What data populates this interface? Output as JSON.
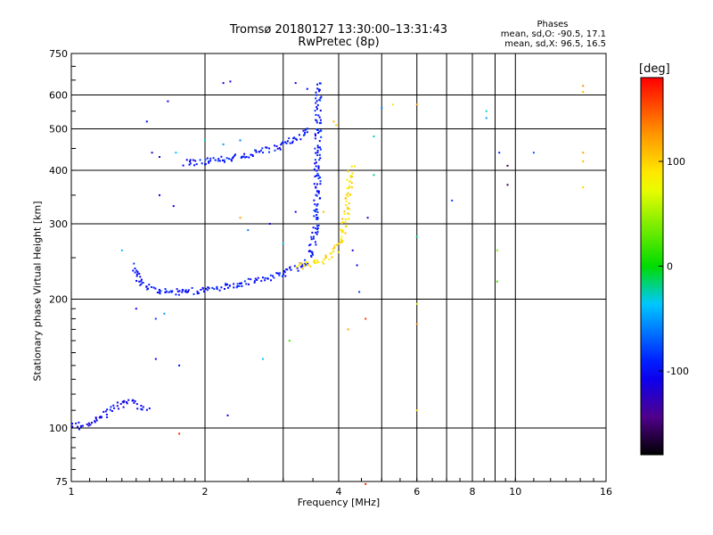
{
  "title": {
    "line1": "Tromsø 20180127 13:30:00–13:31:43",
    "line2": "RwPretec (8p)"
  },
  "phases": {
    "heading": "Phases",
    "o_line": "mean, sd,O: -90.5, 17.1",
    "x_line": "mean, sd,X:  96.5, 16.5"
  },
  "colorbar": {
    "unit": "[deg]",
    "range": [
      -180,
      180
    ],
    "ticks": [
      100,
      0,
      -100
    ],
    "tick_labels": [
      "100",
      "0",
      "-100"
    ]
  },
  "chart_data": {
    "type": "scatter",
    "title": "Tromsø 20180127 13:30:00–13:31:43",
    "subtitle": "RwPretec (8p)",
    "xlabel": "Frequency [MHz]",
    "ylabel": "Stationary phase Virtual Height [km]",
    "x_scale": "log",
    "y_scale": "log",
    "xlim": [
      1,
      16
    ],
    "ylim": [
      75,
      750
    ],
    "x_ticks": [
      1,
      2,
      4,
      6,
      8,
      10,
      16
    ],
    "x_tick_labels": [
      "1",
      "2",
      "4",
      "6",
      "8",
      "10",
      "16"
    ],
    "x_minor_ticks": [
      3,
      5,
      7,
      9
    ],
    "y_ticks": [
      75,
      100,
      200,
      300,
      400,
      500,
      600,
      750
    ],
    "y_tick_labels": [
      "75",
      "100",
      "200",
      "300",
      "400",
      "500",
      "600",
      "750"
    ],
    "grid": true,
    "color_scale": "phase [deg], -180 (black) to 180 (red)",
    "traces": [
      {
        "mode": "O",
        "phase": -105,
        "points": [
          [
            1.0,
            103
          ],
          [
            1.06,
            101
          ],
          [
            1.12,
            104
          ],
          [
            1.18,
            108
          ],
          [
            1.24,
            112
          ],
          [
            1.3,
            114
          ],
          [
            1.36,
            116
          ],
          [
            1.42,
            113
          ],
          [
            1.48,
            112
          ]
        ]
      },
      {
        "mode": "O",
        "phase": -95,
        "points": [
          [
            1.38,
            240
          ],
          [
            1.41,
            222
          ],
          [
            1.46,
            215
          ],
          [
            1.55,
            211
          ],
          [
            1.65,
            209
          ],
          [
            1.8,
            209
          ],
          [
            2.0,
            211
          ],
          [
            2.2,
            214
          ],
          [
            2.45,
            219
          ],
          [
            2.7,
            224
          ],
          [
            2.95,
            230
          ],
          [
            3.15,
            236
          ],
          [
            3.3,
            242
          ],
          [
            3.42,
            252
          ],
          [
            3.5,
            272
          ],
          [
            3.54,
            300
          ],
          [
            3.56,
            340
          ],
          [
            3.57,
            400
          ],
          [
            3.58,
            480
          ],
          [
            3.58,
            560
          ],
          [
            3.58,
            650
          ]
        ]
      },
      {
        "mode": "O",
        "phase": -95,
        "points": [
          [
            1.8,
            418
          ],
          [
            2.0,
            422
          ],
          [
            2.3,
            430
          ],
          [
            2.6,
            440
          ],
          [
            2.9,
            455
          ],
          [
            3.1,
            470
          ],
          [
            3.3,
            485
          ],
          [
            3.45,
            505
          ]
        ]
      },
      {
        "mode": "X",
        "phase": 95,
        "points": [
          [
            3.2,
            240
          ],
          [
            3.4,
            242
          ],
          [
            3.6,
            246
          ],
          [
            3.8,
            253
          ],
          [
            3.95,
            263
          ],
          [
            4.05,
            280
          ],
          [
            4.12,
            305
          ],
          [
            4.18,
            340
          ],
          [
            4.22,
            380
          ],
          [
            4.26,
            410
          ]
        ]
      }
    ],
    "scatter": [
      {
        "x": 1.48,
        "y": 520,
        "phase": -100
      },
      {
        "x": 1.65,
        "y": 580,
        "phase": -110
      },
      {
        "x": 2.2,
        "y": 640,
        "phase": -115
      },
      {
        "x": 2.28,
        "y": 645,
        "phase": -110
      },
      {
        "x": 1.52,
        "y": 440,
        "phase": -120
      },
      {
        "x": 1.58,
        "y": 430,
        "phase": -115
      },
      {
        "x": 1.72,
        "y": 440,
        "phase": -40
      },
      {
        "x": 1.58,
        "y": 350,
        "phase": -105
      },
      {
        "x": 1.7,
        "y": 330,
        "phase": -110
      },
      {
        "x": 1.3,
        "y": 260,
        "phase": -40
      },
      {
        "x": 1.4,
        "y": 190,
        "phase": -110
      },
      {
        "x": 1.55,
        "y": 180,
        "phase": -80
      },
      {
        "x": 1.62,
        "y": 185,
        "phase": -50
      },
      {
        "x": 1.55,
        "y": 145,
        "phase": -110
      },
      {
        "x": 1.75,
        "y": 140,
        "phase": -95
      },
      {
        "x": 1.75,
        "y": 97,
        "phase": 165
      },
      {
        "x": 2.25,
        "y": 107,
        "phase": -110
      },
      {
        "x": 2.7,
        "y": 145,
        "phase": -40
      },
      {
        "x": 2.5,
        "y": 290,
        "phase": -60
      },
      {
        "x": 2.8,
        "y": 300,
        "phase": -110
      },
      {
        "x": 2.4,
        "y": 310,
        "phase": 120
      },
      {
        "x": 3.2,
        "y": 320,
        "phase": -110
      },
      {
        "x": 3.1,
        "y": 160,
        "phase": 20
      },
      {
        "x": 3.0,
        "y": 270,
        "phase": -40
      },
      {
        "x": 3.7,
        "y": 320,
        "phase": 110
      },
      {
        "x": 4.3,
        "y": 260,
        "phase": -110
      },
      {
        "x": 4.4,
        "y": 240,
        "phase": -100
      },
      {
        "x": 4.45,
        "y": 208,
        "phase": -80
      },
      {
        "x": 4.6,
        "y": 180,
        "phase": 160
      },
      {
        "x": 4.2,
        "y": 170,
        "phase": 120
      },
      {
        "x": 4.65,
        "y": 310,
        "phase": -110
      },
      {
        "x": 4.8,
        "y": 390,
        "phase": -20
      },
      {
        "x": 4.8,
        "y": 480,
        "phase": -30
      },
      {
        "x": 5.0,
        "y": 560,
        "phase": -60
      },
      {
        "x": 5.3,
        "y": 570,
        "phase": 90
      },
      {
        "x": 6.0,
        "y": 570,
        "phase": 120
      },
      {
        "x": 4.6,
        "y": 74,
        "phase": 170
      },
      {
        "x": 6.0,
        "y": 280,
        "phase": -20
      },
      {
        "x": 6.0,
        "y": 195,
        "phase": 60
      },
      {
        "x": 6.0,
        "y": 175,
        "phase": 130
      },
      {
        "x": 6.0,
        "y": 110,
        "phase": 100
      },
      {
        "x": 7.2,
        "y": 340,
        "phase": -80
      },
      {
        "x": 8.6,
        "y": 550,
        "phase": -30
      },
      {
        "x": 8.6,
        "y": 530,
        "phase": -50
      },
      {
        "x": 9.2,
        "y": 440,
        "phase": -90
      },
      {
        "x": 9.6,
        "y": 410,
        "phase": -155
      },
      {
        "x": 9.6,
        "y": 370,
        "phase": -155
      },
      {
        "x": 9.1,
        "y": 260,
        "phase": 40
      },
      {
        "x": 9.1,
        "y": 220,
        "phase": 20
      },
      {
        "x": 11.0,
        "y": 440,
        "phase": -70
      },
      {
        "x": 14.2,
        "y": 630,
        "phase": 130
      },
      {
        "x": 14.2,
        "y": 610,
        "phase": 110
      },
      {
        "x": 14.2,
        "y": 440,
        "phase": 120
      },
      {
        "x": 14.2,
        "y": 420,
        "phase": 110
      },
      {
        "x": 14.2,
        "y": 365,
        "phase": 100
      },
      {
        "x": 3.9,
        "y": 520,
        "phase": 110
      },
      {
        "x": 3.95,
        "y": 510,
        "phase": 105
      },
      {
        "x": 3.2,
        "y": 640,
        "phase": -110
      },
      {
        "x": 3.4,
        "y": 620,
        "phase": -100
      },
      {
        "x": 2.0,
        "y": 470,
        "phase": -30
      },
      {
        "x": 2.2,
        "y": 460,
        "phase": -50
      },
      {
        "x": 2.4,
        "y": 470,
        "phase": -60
      }
    ]
  }
}
